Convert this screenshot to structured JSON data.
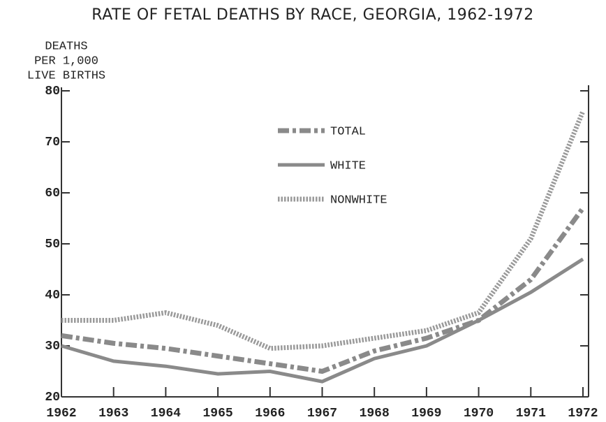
{
  "chart_data": {
    "type": "line",
    "title": "RATE OF FETAL DEATHS BY RACE, GEORGIA, 1962-1972",
    "y_label": [
      "DEATHS",
      "PER 1,000",
      "LIVE BIRTHS"
    ],
    "x": [
      1962,
      1963,
      1964,
      1965,
      1966,
      1967,
      1968,
      1969,
      1970,
      1971,
      1972
    ],
    "xlim": [
      1962,
      1972
    ],
    "xticks": [
      1962,
      1963,
      1964,
      1965,
      1966,
      1967,
      1968,
      1969,
      1970,
      1971,
      1972
    ],
    "ylim": [
      20,
      80
    ],
    "yticks": [
      20,
      30,
      40,
      50,
      60,
      70,
      80
    ],
    "series": [
      {
        "name": "TOTAL",
        "color": "#8a8a8a",
        "style": "dashdot",
        "values": [
          32,
          30.5,
          29.5,
          28,
          26.5,
          25,
          29,
          31.5,
          35,
          43,
          57
        ]
      },
      {
        "name": "WHITE",
        "color": "#8a8a8a",
        "style": "solid",
        "values": [
          30,
          27,
          26,
          24.5,
          25,
          23,
          27.5,
          30,
          35,
          40.5,
          47
        ]
      },
      {
        "name": "NONWHITE",
        "color": "#9a9a9a",
        "style": "dotted",
        "values": [
          35,
          35,
          36.5,
          34,
          29.5,
          30,
          31.5,
          33,
          36.5,
          51,
          76
        ]
      }
    ]
  }
}
